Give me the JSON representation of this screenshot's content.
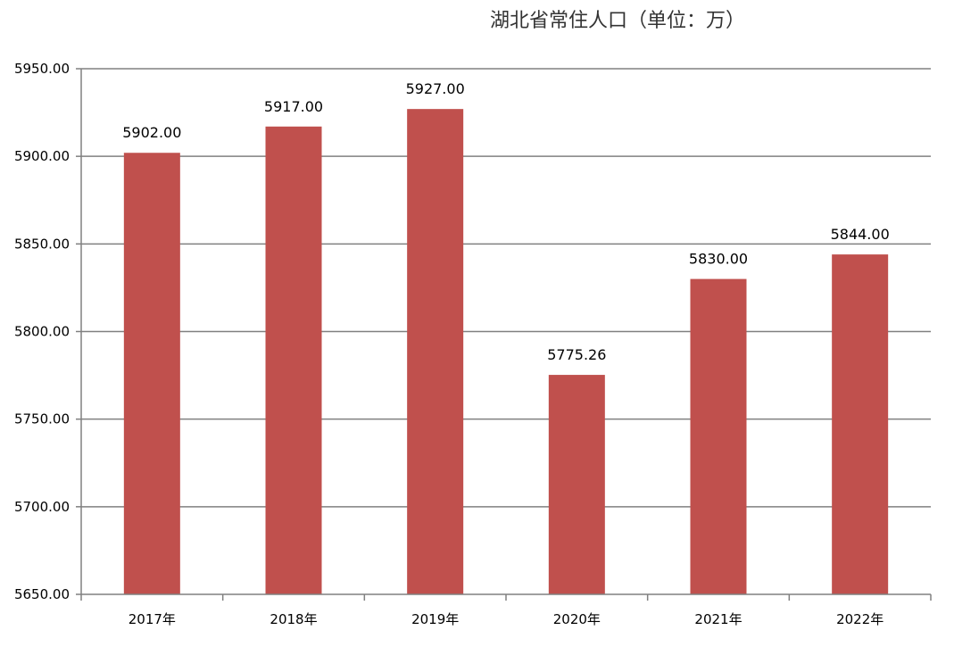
{
  "chart_data": {
    "type": "bar",
    "title": "湖北省常住人口（单位：万）",
    "xlabel": "",
    "ylabel": "",
    "categories": [
      "2017年",
      "2018年",
      "2019年",
      "2020年",
      "2021年",
      "2022年"
    ],
    "values": [
      5902.0,
      5917.0,
      5927.0,
      5775.26,
      5830.0,
      5844.0
    ],
    "data_labels": [
      "5902.00",
      "5917.00",
      "5927.00",
      "5775.26",
      "5830.00",
      "5844.00"
    ],
    "ylim": [
      5650,
      5950
    ],
    "yticks": [
      5650,
      5700,
      5750,
      5800,
      5850,
      5900,
      5950
    ],
    "ytick_labels": [
      "5650.00",
      "5700.00",
      "5750.00",
      "5800.00",
      "5850.00",
      "5900.00",
      "5950.00"
    ],
    "grid": true,
    "legend": "none",
    "colors": {
      "bar": "#c0504d",
      "grid": "#808080",
      "text": "#000000"
    }
  }
}
